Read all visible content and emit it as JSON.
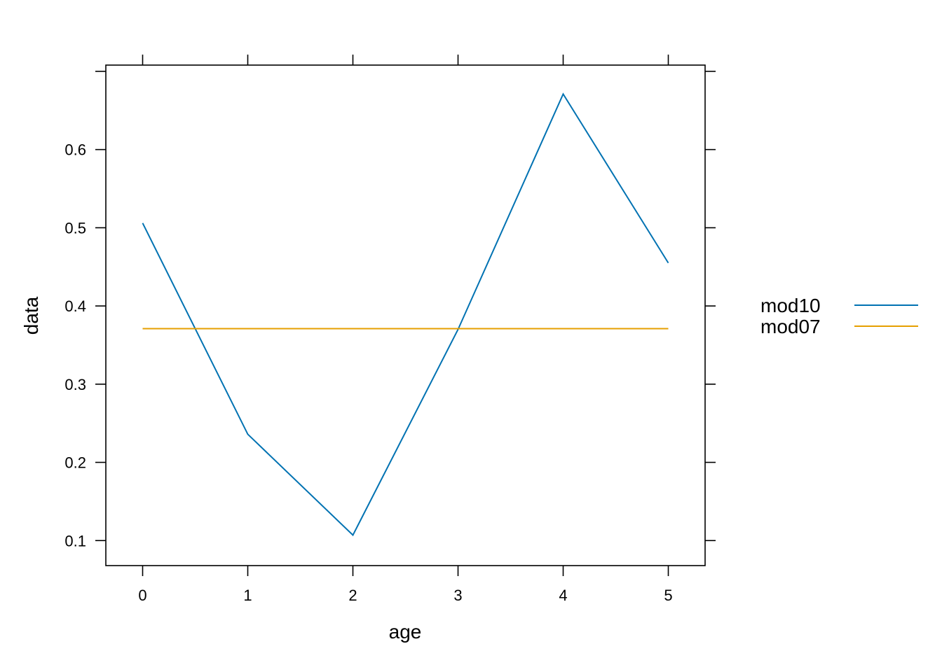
{
  "chart_data": {
    "type": "line",
    "title": "",
    "xlabel": "age",
    "ylabel": "data",
    "x": [
      0,
      1,
      2,
      3,
      4,
      5
    ],
    "xlim": [
      -0.35,
      5.35
    ],
    "ylim": [
      0.068,
      0.708
    ],
    "x_ticks": [
      0,
      1,
      2,
      3,
      4,
      5
    ],
    "y_ticks": [
      0.1,
      0.2,
      0.3,
      0.4,
      0.5,
      0.6
    ],
    "x_tick_labels": [
      "0",
      "1",
      "2",
      "3",
      "4",
      "5"
    ],
    "y_tick_labels": [
      "0.1",
      "0.2",
      "0.3",
      "0.4",
      "0.5",
      "0.6"
    ],
    "grid": false,
    "legend_position": "right",
    "series": [
      {
        "name": "mod10",
        "color": "#0072B2",
        "values": [
          0.506,
          0.236,
          0.107,
          0.37,
          0.671,
          0.455
        ]
      },
      {
        "name": "mod07",
        "color": "#E69F00",
        "values": [
          0.371,
          0.371,
          0.371,
          0.371,
          0.371,
          0.371
        ]
      }
    ]
  }
}
